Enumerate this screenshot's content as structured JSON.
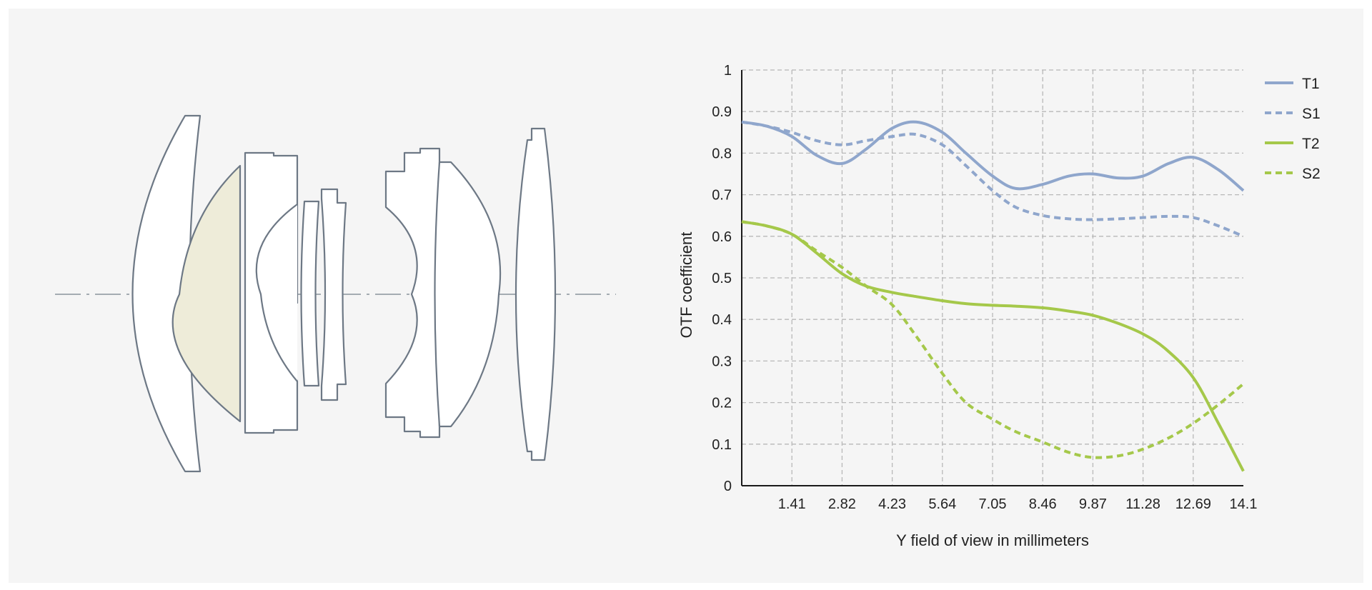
{
  "chart_data": {
    "type": "line",
    "xlabel": "Y field of view in millimeters",
    "ylabel": "OTF coefficient",
    "xlim": [
      0,
      14.1
    ],
    "ylim": [
      0,
      1
    ],
    "x_ticks": [
      "1.41",
      "2.82",
      "4.23",
      "5.64",
      "7.05",
      "8.46",
      "9.87",
      "11.28",
      "12.69",
      "14.1"
    ],
    "y_ticks": [
      "0",
      "0.1",
      "0.2",
      "0.3",
      "0.4",
      "0.5",
      "0.6",
      "0.7",
      "0.8",
      "0.9",
      "1"
    ],
    "grid": true,
    "legend_position": "right",
    "series": [
      {
        "name": "T1",
        "color": "#8fa6cc",
        "dashed": false,
        "x": [
          0,
          0.7,
          1.41,
          2.1,
          2.82,
          3.5,
          4.23,
          4.9,
          5.64,
          6.3,
          7.05,
          7.7,
          8.46,
          9.2,
          9.87,
          10.6,
          11.28,
          12.0,
          12.69,
          13.4,
          14.1
        ],
        "y": [
          0.875,
          0.865,
          0.84,
          0.795,
          0.775,
          0.81,
          0.86,
          0.875,
          0.85,
          0.8,
          0.745,
          0.715,
          0.725,
          0.745,
          0.75,
          0.74,
          0.745,
          0.775,
          0.79,
          0.76,
          0.71
        ]
      },
      {
        "name": "S1",
        "color": "#8fa6cc",
        "dashed": true,
        "x": [
          0,
          0.7,
          1.41,
          2.1,
          2.82,
          3.5,
          4.23,
          4.9,
          5.64,
          6.3,
          7.05,
          7.7,
          8.46,
          9.2,
          9.87,
          10.6,
          11.28,
          12.0,
          12.69,
          13.4,
          14.1
        ],
        "y": [
          0.875,
          0.865,
          0.85,
          0.83,
          0.82,
          0.83,
          0.84,
          0.845,
          0.82,
          0.77,
          0.71,
          0.67,
          0.65,
          0.642,
          0.64,
          0.642,
          0.645,
          0.648,
          0.645,
          0.625,
          0.6
        ]
      },
      {
        "name": "T2",
        "color": "#a5c84a",
        "dashed": false,
        "x": [
          0,
          0.7,
          1.41,
          2.1,
          2.82,
          3.5,
          4.23,
          4.9,
          5.64,
          6.3,
          7.05,
          7.7,
          8.46,
          9.2,
          9.87,
          10.6,
          11.28,
          11.9,
          12.69,
          13.4,
          14.1
        ],
        "y": [
          0.635,
          0.625,
          0.605,
          0.56,
          0.51,
          0.48,
          0.465,
          0.455,
          0.445,
          0.438,
          0.434,
          0.432,
          0.428,
          0.42,
          0.41,
          0.39,
          0.365,
          0.33,
          0.26,
          0.15,
          0.035
        ]
      },
      {
        "name": "S2",
        "color": "#a5c84a",
        "dashed": true,
        "x": [
          0,
          0.7,
          1.41,
          2.1,
          2.82,
          3.5,
          4.23,
          4.9,
          5.64,
          6.3,
          7.05,
          7.7,
          8.46,
          9.2,
          9.87,
          10.6,
          11.28,
          12.0,
          12.69,
          13.4,
          14.1
        ],
        "y": [
          0.635,
          0.625,
          0.605,
          0.565,
          0.525,
          0.48,
          0.435,
          0.36,
          0.27,
          0.2,
          0.16,
          0.13,
          0.105,
          0.08,
          0.068,
          0.072,
          0.088,
          0.115,
          0.15,
          0.195,
          0.245
        ]
      }
    ]
  }
}
